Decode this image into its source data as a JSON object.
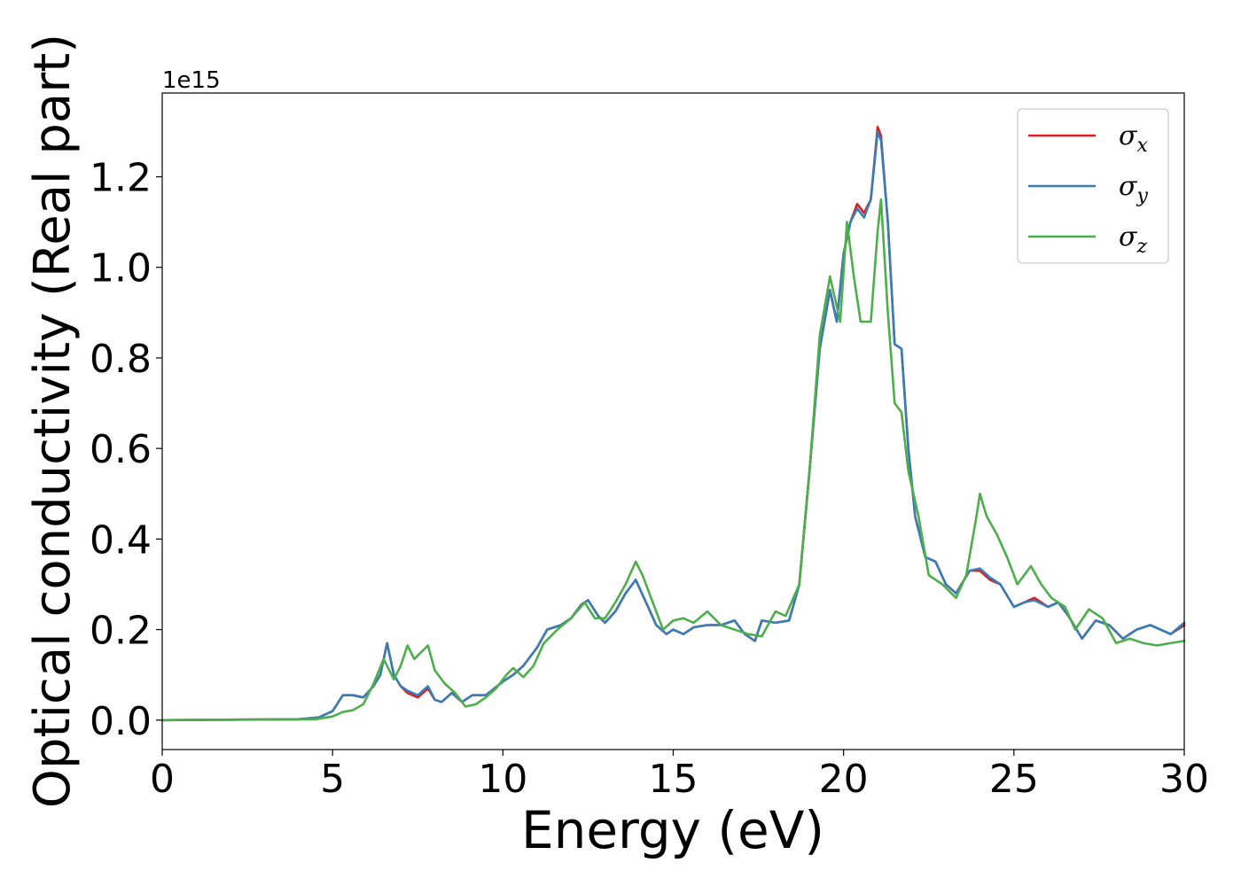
{
  "chart_data": {
    "type": "line",
    "title": "",
    "xlabel": "Energy (eV)",
    "ylabel": "Optical conductivity (Real part)",
    "y_offset_label": "1e15",
    "xlim": [
      0,
      30
    ],
    "ylim": [
      -0.065,
      1.385
    ],
    "xticks": [
      0,
      5,
      10,
      15,
      20,
      25,
      30
    ],
    "xtick_labels": [
      "0",
      "5",
      "10",
      "15",
      "20",
      "25",
      "30"
    ],
    "yticks": [
      0.0,
      0.2,
      0.4,
      0.6,
      0.8,
      1.0,
      1.2
    ],
    "ytick_labels": [
      "0.0",
      "0.2",
      "0.4",
      "0.6",
      "0.8",
      "1.0",
      "1.2"
    ],
    "grid": false,
    "legend_position": "top-right",
    "series": [
      {
        "name": "σx",
        "symbol": "σ",
        "subscript": "x",
        "color": "#e41a1c",
        "x": [
          0,
          4,
          4.6,
          5,
          5.3,
          5.6,
          5.9,
          6.2,
          6.4,
          6.6,
          6.8,
          7,
          7.2,
          7.5,
          7.8,
          8,
          8.2,
          8.5,
          8.8,
          9.1,
          9.5,
          10,
          10.3,
          10.6,
          11,
          11.3,
          11.7,
          12,
          12.3,
          12.5,
          12.8,
          13,
          13.3,
          13.6,
          13.9,
          14.2,
          14.5,
          14.8,
          15,
          15.3,
          15.6,
          16,
          16.4,
          16.8,
          17.1,
          17.4,
          17.6,
          18,
          18.4,
          18.7,
          19,
          19.3,
          19.6,
          19.8,
          20,
          20.2,
          20.4,
          20.6,
          20.8,
          21,
          21.1,
          21.3,
          21.5,
          21.7,
          21.9,
          22.1,
          22.4,
          22.7,
          23,
          23.3,
          23.7,
          24,
          24.3,
          24.6,
          25,
          25.3,
          25.6,
          26,
          26.3,
          26.6,
          27,
          27.4,
          27.8,
          28.2,
          28.6,
          29,
          29.3,
          29.6,
          30
        ],
        "y": [
          0,
          0.002,
          0.006,
          0.02,
          0.055,
          0.055,
          0.05,
          0.075,
          0.1,
          0.17,
          0.1,
          0.075,
          0.06,
          0.05,
          0.07,
          0.045,
          0.04,
          0.06,
          0.04,
          0.055,
          0.055,
          0.085,
          0.1,
          0.12,
          0.16,
          0.2,
          0.21,
          0.225,
          0.255,
          0.265,
          0.23,
          0.215,
          0.24,
          0.28,
          0.31,
          0.26,
          0.21,
          0.19,
          0.2,
          0.19,
          0.205,
          0.21,
          0.21,
          0.22,
          0.19,
          0.175,
          0.22,
          0.215,
          0.22,
          0.3,
          0.55,
          0.82,
          0.95,
          0.88,
          1.03,
          1.1,
          1.14,
          1.12,
          1.15,
          1.31,
          1.29,
          1.1,
          0.83,
          0.82,
          0.6,
          0.45,
          0.36,
          0.35,
          0.3,
          0.28,
          0.33,
          0.33,
          0.31,
          0.3,
          0.25,
          0.26,
          0.27,
          0.25,
          0.26,
          0.23,
          0.18,
          0.22,
          0.21,
          0.18,
          0.2,
          0.21,
          0.2,
          0.19,
          0.21
        ]
      },
      {
        "name": "σy",
        "symbol": "σ",
        "subscript": "y",
        "color": "#377eb8",
        "x": [
          0,
          4,
          4.6,
          5,
          5.3,
          5.6,
          5.9,
          6.2,
          6.4,
          6.6,
          6.8,
          7,
          7.2,
          7.5,
          7.8,
          8,
          8.2,
          8.5,
          8.8,
          9.1,
          9.5,
          10,
          10.3,
          10.6,
          11,
          11.3,
          11.7,
          12,
          12.3,
          12.5,
          12.8,
          13,
          13.3,
          13.6,
          13.9,
          14.2,
          14.5,
          14.8,
          15,
          15.3,
          15.6,
          16,
          16.4,
          16.8,
          17.1,
          17.4,
          17.6,
          18,
          18.4,
          18.7,
          19,
          19.3,
          19.6,
          19.8,
          20,
          20.2,
          20.4,
          20.6,
          20.8,
          21,
          21.1,
          21.3,
          21.5,
          21.7,
          21.9,
          22.1,
          22.4,
          22.7,
          23,
          23.3,
          23.7,
          24,
          24.3,
          24.6,
          25,
          25.3,
          25.6,
          26,
          26.3,
          26.6,
          27,
          27.4,
          27.8,
          28.2,
          28.6,
          29,
          29.3,
          29.6,
          30
        ],
        "y": [
          0,
          0.002,
          0.006,
          0.02,
          0.055,
          0.055,
          0.05,
          0.075,
          0.1,
          0.17,
          0.1,
          0.075,
          0.065,
          0.055,
          0.075,
          0.045,
          0.04,
          0.06,
          0.04,
          0.055,
          0.055,
          0.085,
          0.1,
          0.12,
          0.16,
          0.2,
          0.21,
          0.225,
          0.255,
          0.265,
          0.23,
          0.215,
          0.24,
          0.28,
          0.31,
          0.26,
          0.21,
          0.19,
          0.2,
          0.19,
          0.205,
          0.21,
          0.21,
          0.22,
          0.19,
          0.175,
          0.22,
          0.215,
          0.22,
          0.3,
          0.55,
          0.82,
          0.95,
          0.88,
          1.03,
          1.1,
          1.13,
          1.11,
          1.15,
          1.3,
          1.28,
          1.1,
          0.83,
          0.82,
          0.6,
          0.45,
          0.36,
          0.35,
          0.3,
          0.28,
          0.33,
          0.335,
          0.315,
          0.3,
          0.25,
          0.26,
          0.265,
          0.25,
          0.26,
          0.23,
          0.18,
          0.22,
          0.21,
          0.18,
          0.2,
          0.21,
          0.2,
          0.19,
          0.215
        ]
      },
      {
        "name": "σz",
        "symbol": "σ",
        "subscript": "z",
        "color": "#4daf4a",
        "x": [
          0,
          4.5,
          5,
          5.3,
          5.6,
          5.9,
          6.2,
          6.5,
          6.8,
          7,
          7.2,
          7.4,
          7.6,
          7.8,
          8,
          8.3,
          8.6,
          8.9,
          9.2,
          9.5,
          9.8,
          10.1,
          10.3,
          10.6,
          10.9,
          11.2,
          11.6,
          12,
          12.4,
          12.7,
          13,
          13.3,
          13.6,
          13.9,
          14.1,
          14.4,
          14.7,
          15,
          15.3,
          15.6,
          16,
          16.4,
          16.8,
          17.2,
          17.6,
          18,
          18.3,
          18.7,
          19,
          19.3,
          19.6,
          19.9,
          20.1,
          20.3,
          20.5,
          20.8,
          21,
          21.1,
          21.3,
          21.5,
          21.7,
          21.9,
          22.2,
          22.5,
          22.9,
          23.3,
          23.6,
          23.9,
          24,
          24.2,
          24.5,
          24.8,
          25.1,
          25.5,
          25.8,
          26.1,
          26.5,
          26.8,
          27.2,
          27.6,
          28,
          28.4,
          28.8,
          29.2,
          29.6,
          30
        ],
        "y": [
          0,
          0.002,
          0.008,
          0.018,
          0.022,
          0.035,
          0.08,
          0.135,
          0.09,
          0.12,
          0.165,
          0.135,
          0.15,
          0.165,
          0.11,
          0.08,
          0.06,
          0.03,
          0.035,
          0.05,
          0.07,
          0.1,
          0.115,
          0.095,
          0.12,
          0.17,
          0.2,
          0.225,
          0.26,
          0.225,
          0.225,
          0.26,
          0.3,
          0.35,
          0.32,
          0.26,
          0.2,
          0.22,
          0.225,
          0.215,
          0.24,
          0.21,
          0.2,
          0.19,
          0.185,
          0.24,
          0.23,
          0.3,
          0.55,
          0.85,
          0.98,
          0.88,
          1.1,
          0.98,
          0.88,
          0.88,
          1.08,
          1.15,
          0.9,
          0.7,
          0.68,
          0.55,
          0.45,
          0.32,
          0.3,
          0.27,
          0.32,
          0.45,
          0.5,
          0.45,
          0.41,
          0.36,
          0.3,
          0.34,
          0.3,
          0.27,
          0.25,
          0.2,
          0.245,
          0.225,
          0.17,
          0.18,
          0.17,
          0.165,
          0.17,
          0.175
        ]
      }
    ]
  }
}
